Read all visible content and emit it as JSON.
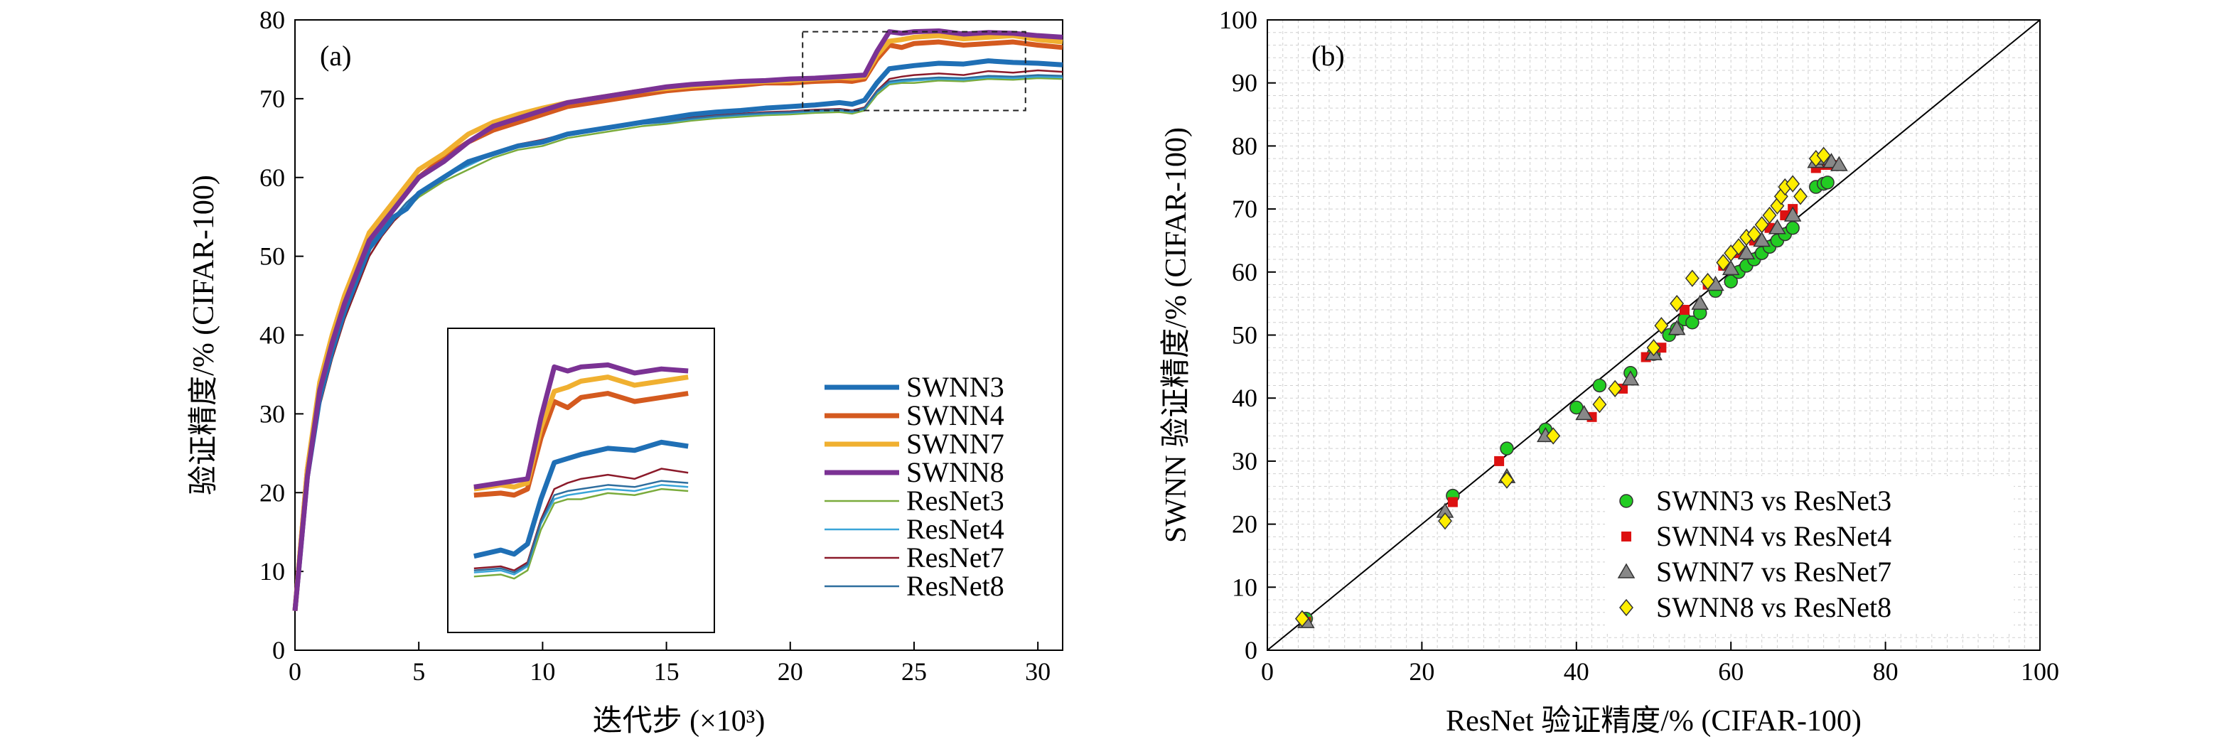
{
  "chart_data": [
    {
      "panel": "(a)",
      "type": "line",
      "xlabel": "迭代步 (×10³)",
      "ylabel": "验证精度/% (CIFAR-100)",
      "xlim": [
        0,
        31
      ],
      "ylim": [
        0,
        80
      ],
      "xticks": [
        0,
        5,
        10,
        15,
        20,
        25,
        30
      ],
      "yticks": [
        0,
        10,
        20,
        30,
        40,
        50,
        60,
        70,
        80
      ],
      "legend_position": "lower-right",
      "inset": {
        "description_source": "dashed region",
        "x_range": [
          20.5,
          29.5
        ],
        "y_range": [
          68.5,
          78.5
        ]
      },
      "x": [
        0,
        0.5,
        1,
        1.5,
        2,
        2.5,
        3,
        3.5,
        4,
        4.5,
        5,
        6,
        7,
        8,
        9,
        10,
        11,
        12,
        13,
        14,
        15,
        16,
        17,
        18,
        19,
        20,
        21,
        22,
        22.5,
        23,
        23.5,
        24,
        24.5,
        25,
        26,
        27,
        28,
        29,
        30,
        31
      ],
      "series": [
        {
          "name": "SWNN3",
          "color": "#1f6fb5",
          "width": 7,
          "values": [
            5,
            22,
            32,
            38,
            43,
            47,
            51,
            53,
            55,
            56,
            58,
            60,
            62,
            63,
            64,
            64.5,
            65.5,
            66,
            66.5,
            67,
            67.5,
            68,
            68.3,
            68.5,
            68.8,
            69,
            69.2,
            69.5,
            69.3,
            69.8,
            72,
            73.8,
            74,
            74.2,
            74.5,
            74.4,
            74.8,
            74.6,
            74.5,
            74.3
          ]
        },
        {
          "name": "SWNN4",
          "color": "#d45a1f",
          "width": 7,
          "values": [
            5,
            23,
            33,
            39,
            44,
            48,
            52,
            54,
            56,
            58,
            60,
            62.5,
            64.5,
            66,
            67,
            68,
            69,
            69.5,
            70,
            70.5,
            71,
            71.3,
            71.5,
            71.7,
            72,
            72,
            72.2,
            72.3,
            72.2,
            72.5,
            75,
            76.8,
            76.5,
            77,
            77.2,
            76.8,
            77,
            77.2,
            76.8,
            76.5
          ]
        },
        {
          "name": "SWNN7",
          "color": "#f0b030",
          "width": 7,
          "values": [
            5,
            23,
            34,
            40,
            45,
            49,
            53,
            55,
            57,
            59,
            61,
            63,
            65.5,
            67,
            68,
            68.8,
            69.5,
            70,
            70.5,
            71,
            71.3,
            71.6,
            71.8,
            72,
            72.2,
            72.3,
            72.5,
            72.7,
            72.6,
            72.8,
            75.5,
            77.3,
            77.5,
            77.8,
            78,
            77.6,
            77.8,
            78,
            77.5,
            77.2
          ]
        },
        {
          "name": "SWNN8",
          "color": "#7b3294",
          "width": 7,
          "values": [
            5,
            22,
            33,
            39,
            44,
            48,
            52,
            54,
            56,
            58,
            60,
            62,
            64.5,
            66.5,
            67.5,
            68.5,
            69.5,
            70,
            70.5,
            71,
            71.5,
            71.8,
            72,
            72.2,
            72.3,
            72.5,
            72.6,
            72.8,
            72.9,
            73,
            76,
            78.5,
            78.3,
            78.5,
            78.6,
            78.2,
            78.4,
            78.3,
            78,
            77.8
          ]
        },
        {
          "name": "ResNet3",
          "color": "#7aab3c",
          "width": 2.5,
          "values": [
            5,
            21,
            31,
            37,
            42,
            46,
            50,
            52.5,
            54.5,
            56,
            57.5,
            59.5,
            61,
            62.5,
            63.5,
            64,
            65,
            65.5,
            66,
            66.5,
            66.8,
            67.2,
            67.5,
            67.7,
            67.9,
            68,
            68.2,
            68.3,
            68.1,
            68.5,
            70.5,
            71.8,
            72,
            72,
            72.3,
            72.2,
            72.5,
            72.4,
            72.6,
            72.5
          ]
        },
        {
          "name": "ResNet4",
          "color": "#3aa5d8",
          "width": 2.5,
          "values": [
            5,
            22,
            32,
            38,
            43,
            47,
            51,
            53,
            55,
            56.5,
            58,
            60,
            61.5,
            63,
            64,
            64.5,
            65.3,
            65.8,
            66.3,
            66.8,
            67,
            67.4,
            67.7,
            67.9,
            68.1,
            68.2,
            68.4,
            68.5,
            68.3,
            68.7,
            70.8,
            72,
            72.2,
            72.3,
            72.5,
            72.4,
            72.7,
            72.6,
            72.8,
            72.7
          ]
        },
        {
          "name": "ResNet7",
          "color": "#8b1a2a",
          "width": 2.5,
          "values": [
            5,
            21,
            31,
            37,
            42,
            46,
            50,
            52.5,
            54.5,
            56,
            58,
            60,
            61.8,
            63.2,
            64.2,
            64.8,
            65.6,
            66.1,
            66.6,
            67,
            67.3,
            67.6,
            67.9,
            68.1,
            68.3,
            68.4,
            68.6,
            68.7,
            68.5,
            68.9,
            71,
            72.5,
            72.8,
            73,
            73.2,
            73,
            73.5,
            73.3,
            73.6,
            73.4
          ]
        },
        {
          "name": "ResNet8",
          "color": "#2e6e9e",
          "width": 2.5,
          "values": [
            5,
            22,
            32,
            38,
            43,
            47,
            51,
            53,
            55,
            56.8,
            58.2,
            60.2,
            61.7,
            63,
            64,
            64.6,
            65.4,
            65.9,
            66.4,
            66.8,
            67.1,
            67.5,
            67.8,
            68,
            68.2,
            68.3,
            68.5,
            68.6,
            68.4,
            68.8,
            70.9,
            72.2,
            72.4,
            72.5,
            72.7,
            72.6,
            72.9,
            72.8,
            73,
            72.9
          ]
        }
      ]
    },
    {
      "panel": "(b)",
      "type": "scatter",
      "xlabel": "ResNet 验证精度/% (CIFAR-100)",
      "ylabel": "SWNN 验证精度/% (CIFAR-100)",
      "xlim": [
        0,
        100
      ],
      "ylim": [
        0,
        100
      ],
      "xticks": [
        0,
        20,
        40,
        60,
        80,
        100
      ],
      "yticks": [
        0,
        10,
        20,
        30,
        40,
        50,
        60,
        70,
        80,
        90,
        100
      ],
      "diagonal": true,
      "grid": true,
      "legend_position": "lower-right",
      "series": [
        {
          "name": "SWNN3 vs ResNet3",
          "marker": "circle",
          "color": "#22cc22",
          "points": [
            [
              5,
              5
            ],
            [
              24,
              24.5
            ],
            [
              31,
              32
            ],
            [
              36,
              35
            ],
            [
              40,
              38.5
            ],
            [
              43,
              42
            ],
            [
              47,
              44
            ],
            [
              50,
              47
            ],
            [
              52,
              50
            ],
            [
              53,
              51
            ],
            [
              54,
              52.5
            ],
            [
              55,
              52
            ],
            [
              56,
              53.5
            ],
            [
              58,
              57
            ],
            [
              60,
              58.5
            ],
            [
              61,
              60
            ],
            [
              62,
              61
            ],
            [
              63,
              62
            ],
            [
              64,
              63
            ],
            [
              65,
              64
            ],
            [
              66,
              65
            ],
            [
              67,
              66
            ],
            [
              68,
              67
            ],
            [
              71,
              73.5
            ],
            [
              72,
              74
            ],
            [
              72.5,
              74.2
            ]
          ]
        },
        {
          "name": "SWNN4 vs ResNet4",
          "marker": "square",
          "color": "#dd1111",
          "points": [
            [
              5,
              4.5
            ],
            [
              24,
              23.5
            ],
            [
              30,
              30
            ],
            [
              42,
              37
            ],
            [
              46,
              41.5
            ],
            [
              49,
              46.5
            ],
            [
              51,
              48
            ],
            [
              54,
              54
            ],
            [
              57,
              58
            ],
            [
              59,
              61
            ],
            [
              61,
              63
            ],
            [
              63,
              65
            ],
            [
              65,
              67
            ],
            [
              67,
              69
            ],
            [
              68,
              70
            ],
            [
              71,
              76.5
            ],
            [
              72,
              77
            ],
            [
              73,
              77
            ]
          ]
        },
        {
          "name": "SWNN7 vs ResNet7",
          "marker": "triangle",
          "color": "#888888",
          "points": [
            [
              5,
              4.5
            ],
            [
              23,
              22
            ],
            [
              31,
              27.5
            ],
            [
              36,
              34
            ],
            [
              41,
              37.5
            ],
            [
              47,
              43
            ],
            [
              50,
              47
            ],
            [
              53,
              51
            ],
            [
              56,
              55
            ],
            [
              58,
              58
            ],
            [
              60,
              60.5
            ],
            [
              62,
              63
            ],
            [
              64,
              65
            ],
            [
              66,
              67
            ],
            [
              68,
              69
            ],
            [
              71,
              77.5
            ],
            [
              72,
              78
            ],
            [
              73,
              77.5
            ],
            [
              74,
              77
            ]
          ]
        },
        {
          "name": "SWNN8 vs ResNet8",
          "marker": "diamond",
          "color": "#ffee00",
          "points": [
            [
              4.5,
              5
            ],
            [
              23,
              20.5
            ],
            [
              31,
              27
            ],
            [
              37,
              34
            ],
            [
              43,
              39
            ],
            [
              45,
              41.5
            ],
            [
              50,
              48
            ],
            [
              51,
              51.5
            ],
            [
              53,
              55
            ],
            [
              55,
              59
            ],
            [
              57,
              58.5
            ],
            [
              59,
              61.5
            ],
            [
              60,
              63
            ],
            [
              61,
              64
            ],
            [
              62,
              65.5
            ],
            [
              63,
              66
            ],
            [
              64,
              67.5
            ],
            [
              65,
              69
            ],
            [
              66,
              70.5
            ],
            [
              66.5,
              72
            ],
            [
              67,
              73.5
            ],
            [
              68,
              74
            ],
            [
              69,
              72
            ],
            [
              71,
              78
            ],
            [
              72,
              78.5
            ]
          ]
        }
      ]
    }
  ]
}
